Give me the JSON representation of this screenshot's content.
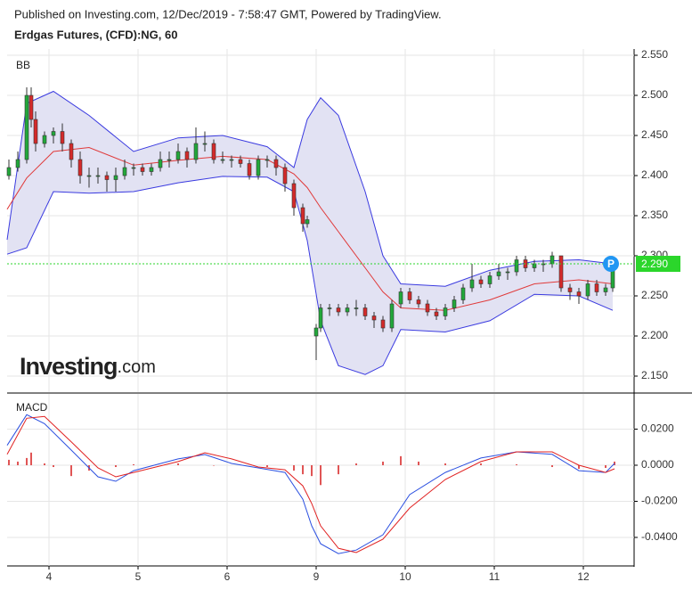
{
  "header": "Published on Investing.com, 12/Dec/2019 - 7:58:47 GMT, Powered by TradingView.",
  "logo": {
    "brand": "Investing",
    "suffix": ".com"
  },
  "chart_data": [
    {
      "type": "candlestick",
      "title": "Erdgas Futures, (CFD):NG, 60",
      "panel_label": "BB",
      "up_color": "#22a83a",
      "down_color": "#d42a2a",
      "x": [
        -0.45,
        -0.35,
        -0.25,
        -0.2,
        -0.15,
        -0.05,
        0.05,
        0.15,
        0.25,
        0.35,
        0.45,
        0.55,
        0.65,
        0.75,
        0.85,
        0.95,
        1.05,
        1.15,
        1.25,
        1.35,
        1.45,
        1.55,
        1.65,
        1.75,
        1.85,
        1.95,
        2.05,
        2.15,
        2.25,
        2.35,
        2.45,
        2.55,
        2.65,
        2.75,
        2.85,
        2.9,
        3.0,
        3.05,
        3.15,
        3.25,
        3.35,
        3.45,
        3.55,
        3.65,
        3.75,
        3.85,
        3.95,
        4.05,
        4.15,
        4.25,
        4.35,
        4.45,
        4.55,
        4.65,
        4.75,
        4.85,
        4.95,
        5.05,
        5.15,
        5.25,
        5.35,
        5.45,
        5.55,
        5.65,
        5.75,
        5.85,
        5.95,
        6.05,
        6.15,
        6.25,
        6.33
      ],
      "open": [
        2.4,
        2.41,
        2.42,
        2.5,
        2.47,
        2.44,
        2.45,
        2.455,
        2.44,
        2.42,
        2.4,
        2.4,
        2.4,
        2.395,
        2.4,
        2.41,
        2.41,
        2.405,
        2.41,
        2.42,
        2.42,
        2.43,
        2.42,
        2.44,
        2.44,
        2.42,
        2.42,
        2.42,
        2.415,
        2.4,
        2.42,
        2.42,
        2.41,
        2.39,
        2.36,
        2.34,
        2.2,
        2.21,
        2.235,
        2.235,
        2.23,
        2.235,
        2.235,
        2.225,
        2.22,
        2.21,
        2.24,
        2.255,
        2.245,
        2.24,
        2.23,
        2.225,
        2.235,
        2.245,
        2.26,
        2.27,
        2.265,
        2.275,
        2.28,
        2.28,
        2.295,
        2.285,
        2.29,
        2.29,
        2.3,
        2.26,
        2.255,
        2.25,
        2.265,
        2.255,
        2.26
      ],
      "high": [
        2.42,
        2.43,
        2.51,
        2.51,
        2.48,
        2.455,
        2.46,
        2.465,
        2.445,
        2.43,
        2.41,
        2.41,
        2.405,
        2.41,
        2.42,
        2.415,
        2.415,
        2.415,
        2.43,
        2.43,
        2.44,
        2.435,
        2.46,
        2.455,
        2.445,
        2.43,
        2.425,
        2.425,
        2.42,
        2.425,
        2.425,
        2.425,
        2.415,
        2.395,
        2.365,
        2.35,
        2.215,
        2.24,
        2.24,
        2.24,
        2.24,
        2.245,
        2.24,
        2.23,
        2.225,
        2.245,
        2.26,
        2.26,
        2.25,
        2.245,
        2.235,
        2.24,
        2.25,
        2.265,
        2.29,
        2.275,
        2.28,
        2.29,
        2.285,
        2.3,
        2.3,
        2.295,
        2.295,
        2.305,
        2.3,
        2.265,
        2.26,
        2.27,
        2.27,
        2.265,
        2.295
      ],
      "low": [
        2.395,
        2.405,
        2.415,
        2.46,
        2.43,
        2.435,
        2.44,
        2.43,
        2.41,
        2.39,
        2.385,
        2.39,
        2.38,
        2.38,
        2.395,
        2.4,
        2.4,
        2.4,
        2.405,
        2.41,
        2.415,
        2.41,
        2.415,
        2.43,
        2.415,
        2.415,
        2.41,
        2.41,
        2.395,
        2.395,
        2.41,
        2.4,
        2.38,
        2.35,
        2.33,
        2.335,
        2.17,
        2.205,
        2.225,
        2.225,
        2.225,
        2.225,
        2.22,
        2.21,
        2.205,
        2.205,
        2.235,
        2.24,
        2.235,
        2.225,
        2.22,
        2.22,
        2.23,
        2.24,
        2.255,
        2.26,
        2.26,
        2.27,
        2.27,
        2.275,
        2.28,
        2.28,
        2.28,
        2.285,
        2.255,
        2.245,
        2.24,
        2.245,
        2.25,
        2.25,
        2.255
      ],
      "close": [
        2.41,
        2.42,
        2.5,
        2.47,
        2.44,
        2.45,
        2.455,
        2.44,
        2.42,
        2.4,
        2.4,
        2.4,
        2.395,
        2.4,
        2.41,
        2.41,
        2.405,
        2.41,
        2.42,
        2.42,
        2.43,
        2.42,
        2.44,
        2.44,
        2.42,
        2.42,
        2.42,
        2.415,
        2.4,
        2.42,
        2.42,
        2.41,
        2.39,
        2.36,
        2.34,
        2.345,
        2.21,
        2.235,
        2.235,
        2.23,
        2.235,
        2.235,
        2.225,
        2.22,
        2.21,
        2.24,
        2.255,
        2.245,
        2.24,
        2.23,
        2.225,
        2.235,
        2.245,
        2.26,
        2.27,
        2.265,
        2.275,
        2.28,
        2.28,
        2.295,
        2.285,
        2.29,
        2.29,
        2.3,
        2.26,
        2.255,
        2.25,
        2.265,
        2.255,
        2.26,
        2.29
      ],
      "bands": {
        "x": [
          -0.47,
          -0.25,
          0.05,
          0.45,
          0.95,
          1.45,
          1.95,
          2.45,
          2.75,
          2.9,
          3.05,
          3.25,
          3.55,
          3.75,
          3.95,
          4.45,
          4.95,
          5.45,
          5.95,
          6.33
        ],
        "upper": [
          2.32,
          2.49,
          2.505,
          2.475,
          2.43,
          2.447,
          2.45,
          2.436,
          2.41,
          2.47,
          2.497,
          2.475,
          2.38,
          2.3,
          2.265,
          2.262,
          2.282,
          2.293,
          2.295,
          2.29
        ],
        "middle": [
          2.358,
          2.397,
          2.43,
          2.435,
          2.413,
          2.419,
          2.424,
          2.42,
          2.402,
          2.385,
          2.36,
          2.33,
          2.285,
          2.255,
          2.235,
          2.232,
          2.245,
          2.265,
          2.27,
          2.265
        ],
        "lower": [
          2.302,
          2.31,
          2.38,
          2.378,
          2.38,
          2.391,
          2.399,
          2.398,
          2.38,
          2.319,
          2.219,
          2.163,
          2.152,
          2.163,
          2.208,
          2.205,
          2.219,
          2.252,
          2.25,
          2.232
        ],
        "band_color": "#3a3ae0",
        "middle_color": "#e03a3a",
        "fill": "#e2e2f3"
      },
      "last_price": {
        "value": 2.29,
        "label": "2.290"
      },
      "marker": "P",
      "xlim": [
        -0.47,
        6.57
      ],
      "ylim": [
        2.13,
        2.5578
      ],
      "yticks": [
        {
          "value": 2.15,
          "label": "2.150"
        },
        {
          "value": 2.2,
          "label": "2.200"
        },
        {
          "value": 2.25,
          "label": "2.250"
        },
        {
          "value": 2.3,
          "label": "2.300"
        },
        {
          "value": 2.35,
          "label": "2.350"
        },
        {
          "value": 2.4,
          "label": "2.400"
        },
        {
          "value": 2.45,
          "label": "2.450"
        },
        {
          "value": 2.5,
          "label": "2.500"
        },
        {
          "value": 2.55,
          "label": "2.550"
        }
      ],
      "xticks": [
        0,
        1,
        2,
        3,
        4,
        5,
        6
      ]
    },
    {
      "type": "macd",
      "panel_label": "MACD",
      "x": [
        -0.47,
        -0.25,
        -0.05,
        0.25,
        0.55,
        0.75,
        0.95,
        1.45,
        1.75,
        2.05,
        2.35,
        2.65,
        2.85,
        2.95,
        3.05,
        3.25,
        3.45,
        3.75,
        4.05,
        4.45,
        4.85,
        5.25,
        5.65,
        5.95,
        6.25,
        6.35
      ],
      "series": [
        {
          "color": "#2a4fe0",
          "values": [
            0.011,
            0.028,
            0.023,
            0.0084,
            -0.0064,
            -0.0089,
            -0.003,
            0.0035,
            0.0059,
            0.001,
            -0.0015,
            -0.004,
            -0.0188,
            -0.0336,
            -0.0435,
            -0.049,
            -0.047,
            -0.0385,
            -0.0163,
            -0.004,
            0.004,
            0.0074,
            0.006,
            -0.003,
            -0.004,
            0.001
          ]
        },
        {
          "color": "#e02020",
          "values": [
            0.006,
            0.026,
            0.027,
            0.013,
            -0.0015,
            -0.0064,
            -0.004,
            0.002,
            0.0069,
            0.0035,
            -0.001,
            -0.0025,
            -0.0114,
            -0.0212,
            -0.0336,
            -0.046,
            -0.0484,
            -0.041,
            -0.0237,
            -0.0079,
            0.002,
            0.0074,
            0.0074,
            0.0,
            -0.004,
            -0.002
          ]
        }
      ],
      "histogram": {
        "color": "#e05555",
        "x": [
          -0.45,
          -0.35,
          -0.25,
          -0.2,
          -0.05,
          0.05,
          0.25,
          0.45,
          0.75,
          0.95,
          1.45,
          1.85,
          2.45,
          2.75,
          2.85,
          2.95,
          3.05,
          3.25,
          3.45,
          3.75,
          3.95,
          4.15,
          4.45,
          4.85,
          5.25,
          5.65,
          5.95,
          6.25,
          6.35
        ],
        "values": [
          0.003,
          0.002,
          0.004,
          0.007,
          0.001,
          -0.001,
          -0.006,
          -0.003,
          -0.001,
          0.0005,
          0.001,
          0.0,
          -0.001,
          -0.003,
          -0.005,
          -0.006,
          -0.011,
          -0.005,
          0.001,
          0.002,
          0.005,
          0.002,
          0.001,
          0.001,
          0.0005,
          -0.001,
          -0.002,
          -0.0015,
          0.002
        ]
      },
      "xlim": [
        -0.47,
        6.57
      ],
      "ylim": [
        -0.0558,
        0.0395
      ],
      "yticks": [
        {
          "value": 0.02,
          "label": "0.0200"
        },
        {
          "value": 0,
          "label": "0.0000"
        },
        {
          "value": -0.02,
          "label": "-0.0200"
        },
        {
          "value": -0.04,
          "label": "-0.0400"
        }
      ],
      "xticks": [
        {
          "value": 0,
          "label": "4"
        },
        {
          "value": 1,
          "label": "5"
        },
        {
          "value": 2,
          "label": "6"
        },
        {
          "value": 3,
          "label": "9"
        },
        {
          "value": 4,
          "label": "10"
        },
        {
          "value": 5,
          "label": "11"
        },
        {
          "value": 6,
          "label": "12"
        }
      ]
    }
  ]
}
